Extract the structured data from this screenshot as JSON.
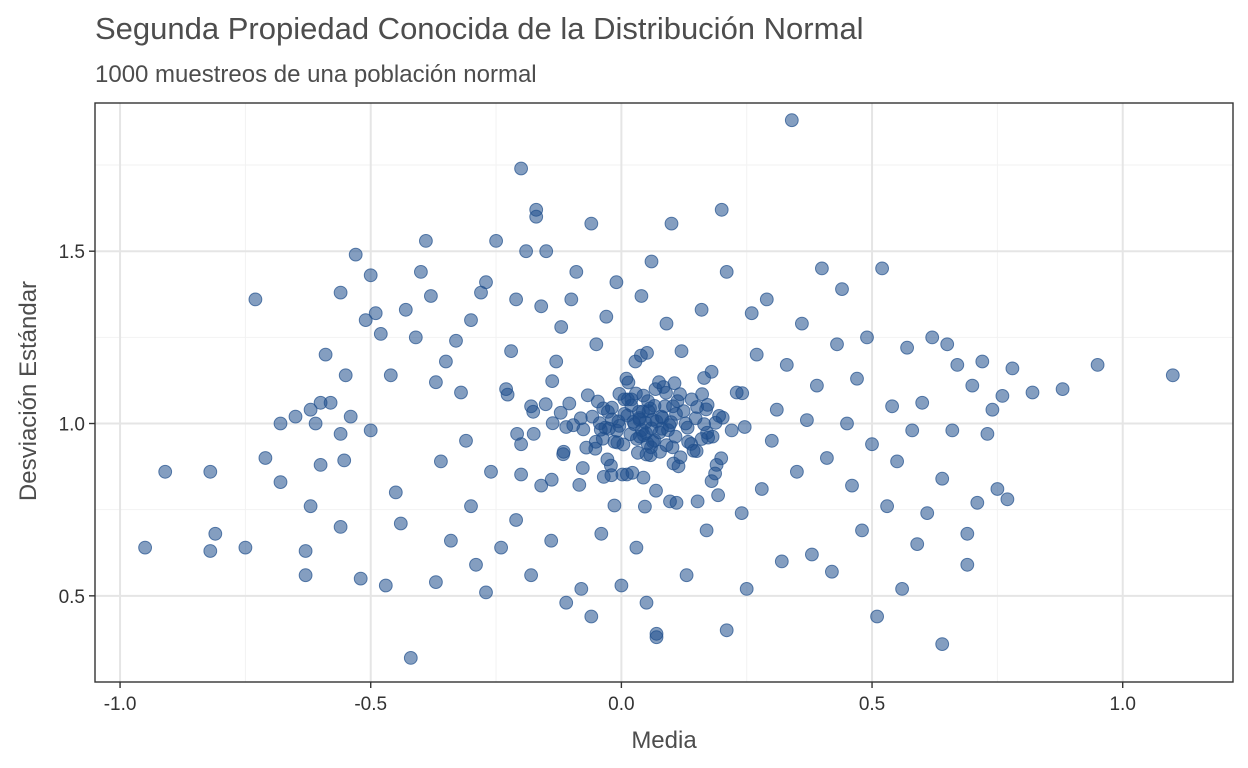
{
  "chart_data": {
    "type": "scatter",
    "title": "Segunda Propiedad Conocida de la Distribución Normal",
    "subtitle": "1000 muestreos de una población normal",
    "xlabel": "Media",
    "ylabel": "Desviación Estándar",
    "xlim": [
      -1.05,
      1.22
    ],
    "ylim": [
      0.25,
      1.93
    ],
    "x_ticks": [
      -1.0,
      -0.5,
      0.0,
      0.5,
      1.0
    ],
    "x_tick_labels": [
      "-1.0",
      "-0.5",
      "0.0",
      "0.5",
      "1.0"
    ],
    "y_ticks": [
      0.5,
      1.0,
      1.5
    ],
    "y_tick_labels": [
      "0.5",
      "1.0",
      "1.5"
    ],
    "grid": true,
    "point_color": "#1f4e8c",
    "point_opacity": 0.55,
    "series": [
      {
        "points": [
          [
            -0.95,
            0.64
          ],
          [
            -0.91,
            0.86
          ],
          [
            -0.82,
            0.86
          ],
          [
            -0.82,
            0.63
          ],
          [
            -0.81,
            0.68
          ],
          [
            -0.75,
            0.64
          ],
          [
            -0.73,
            1.36
          ],
          [
            -0.71,
            0.9
          ],
          [
            -0.68,
            0.83
          ],
          [
            -0.68,
            1.0
          ],
          [
            -0.65,
            1.02
          ],
          [
            -0.63,
            0.63
          ],
          [
            -0.63,
            0.56
          ],
          [
            -0.62,
            0.76
          ],
          [
            -0.62,
            1.04
          ],
          [
            -0.61,
            1.0
          ],
          [
            -0.6,
            1.06
          ],
          [
            -0.6,
            0.88
          ],
          [
            -0.59,
            1.2
          ],
          [
            -0.58,
            1.06
          ],
          [
            -0.56,
            0.97
          ],
          [
            -0.56,
            0.7
          ],
          [
            -0.56,
            1.38
          ],
          [
            -0.55,
            1.14
          ],
          [
            -0.54,
            1.02
          ],
          [
            -0.53,
            1.49
          ],
          [
            -0.52,
            0.55
          ],
          [
            -0.51,
            1.3
          ],
          [
            -0.5,
            1.43
          ],
          [
            -0.5,
            0.98
          ],
          [
            -0.49,
            1.32
          ],
          [
            -0.48,
            1.26
          ],
          [
            -0.47,
            0.53
          ],
          [
            -0.46,
            1.14
          ],
          [
            -0.45,
            0.8
          ],
          [
            -0.44,
            0.71
          ],
          [
            -0.43,
            1.33
          ],
          [
            -0.42,
            0.32
          ],
          [
            -0.41,
            1.25
          ],
          [
            -0.4,
            1.44
          ],
          [
            -0.39,
            1.53
          ],
          [
            -0.38,
            1.37
          ],
          [
            -0.37,
            1.12
          ],
          [
            -0.37,
            0.54
          ],
          [
            -0.36,
            0.89
          ],
          [
            -0.35,
            1.18
          ],
          [
            -0.34,
            0.66
          ],
          [
            -0.33,
            1.24
          ],
          [
            -0.32,
            1.09
          ],
          [
            -0.31,
            0.95
          ],
          [
            -0.3,
            1.3
          ],
          [
            -0.3,
            0.76
          ],
          [
            -0.29,
            0.59
          ],
          [
            -0.28,
            1.38
          ],
          [
            -0.27,
            1.41
          ],
          [
            -0.27,
            0.51
          ],
          [
            -0.26,
            0.86
          ],
          [
            -0.25,
            1.53
          ],
          [
            -0.24,
            0.64
          ],
          [
            -0.23,
            1.1
          ],
          [
            -0.22,
            1.21
          ],
          [
            -0.21,
            1.36
          ],
          [
            -0.21,
            0.72
          ],
          [
            -0.2,
            1.74
          ],
          [
            -0.2,
            0.94
          ],
          [
            -0.19,
            1.5
          ],
          [
            -0.18,
            1.05
          ],
          [
            -0.18,
            0.56
          ],
          [
            -0.17,
            1.62
          ],
          [
            -0.17,
            1.6
          ],
          [
            -0.16,
            1.34
          ],
          [
            -0.16,
            0.82
          ],
          [
            -0.15,
            1.5
          ],
          [
            -0.14,
            0.66
          ],
          [
            -0.13,
            1.18
          ],
          [
            -0.12,
            1.28
          ],
          [
            -0.11,
            0.99
          ],
          [
            -0.11,
            0.48
          ],
          [
            -0.1,
            1.36
          ],
          [
            -0.09,
            1.44
          ],
          [
            -0.08,
            0.52
          ],
          [
            -0.07,
            0.93
          ],
          [
            -0.06,
            1.58
          ],
          [
            -0.06,
            0.44
          ],
          [
            -0.05,
            1.23
          ],
          [
            -0.04,
            0.68
          ],
          [
            -0.03,
            1.31
          ],
          [
            -0.02,
            0.85
          ],
          [
            -0.01,
            1.41
          ],
          [
            0.0,
            0.53
          ],
          [
            0.01,
            1.13
          ],
          [
            0.02,
            1.07
          ],
          [
            0.03,
            0.64
          ],
          [
            0.04,
            1.37
          ],
          [
            0.05,
            0.91
          ],
          [
            0.05,
            0.48
          ],
          [
            0.06,
            1.47
          ],
          [
            0.07,
            0.39
          ],
          [
            0.07,
            0.38
          ],
          [
            0.08,
            1.02
          ],
          [
            0.09,
            1.29
          ],
          [
            0.1,
            1.58
          ],
          [
            0.11,
            0.77
          ],
          [
            0.12,
            1.21
          ],
          [
            0.13,
            0.56
          ],
          [
            0.14,
            1.07
          ],
          [
            0.15,
            0.92
          ],
          [
            0.16,
            1.33
          ],
          [
            0.17,
            0.69
          ],
          [
            0.18,
            1.15
          ],
          [
            0.19,
            0.88
          ],
          [
            0.2,
            1.62
          ],
          [
            0.21,
            0.4
          ],
          [
            0.21,
            1.44
          ],
          [
            0.22,
            0.98
          ],
          [
            0.23,
            1.09
          ],
          [
            0.24,
            0.74
          ],
          [
            0.25,
            0.52
          ],
          [
            0.26,
            1.32
          ],
          [
            0.27,
            1.2
          ],
          [
            0.28,
            0.81
          ],
          [
            0.29,
            1.36
          ],
          [
            0.3,
            0.95
          ],
          [
            0.31,
            1.04
          ],
          [
            0.32,
            0.6
          ],
          [
            0.33,
            1.17
          ],
          [
            0.34,
            1.88
          ],
          [
            0.35,
            0.86
          ],
          [
            0.36,
            1.29
          ],
          [
            0.37,
            1.01
          ],
          [
            0.38,
            0.62
          ],
          [
            0.39,
            1.11
          ],
          [
            0.4,
            1.45
          ],
          [
            0.41,
            0.9
          ],
          [
            0.42,
            0.57
          ],
          [
            0.43,
            1.23
          ],
          [
            0.44,
            1.39
          ],
          [
            0.45,
            1.0
          ],
          [
            0.46,
            0.82
          ],
          [
            0.47,
            1.13
          ],
          [
            0.48,
            0.69
          ],
          [
            0.49,
            1.25
          ],
          [
            0.5,
            0.94
          ],
          [
            0.51,
            0.44
          ],
          [
            0.52,
            1.45
          ],
          [
            0.53,
            0.76
          ],
          [
            0.54,
            1.05
          ],
          [
            0.55,
            0.89
          ],
          [
            0.56,
            0.52
          ],
          [
            0.57,
            1.22
          ],
          [
            0.58,
            0.98
          ],
          [
            0.59,
            0.65
          ],
          [
            0.6,
            1.06
          ],
          [
            0.61,
            0.74
          ],
          [
            0.62,
            1.25
          ],
          [
            0.64,
            0.36
          ],
          [
            0.64,
            0.84
          ],
          [
            0.65,
            1.23
          ],
          [
            0.66,
            0.98
          ],
          [
            0.67,
            1.17
          ],
          [
            0.69,
            0.59
          ],
          [
            0.69,
            0.68
          ],
          [
            0.7,
            1.11
          ],
          [
            0.71,
            0.77
          ],
          [
            0.72,
            1.18
          ],
          [
            0.73,
            0.97
          ],
          [
            0.74,
            1.04
          ],
          [
            0.75,
            0.81
          ],
          [
            0.76,
            1.08
          ],
          [
            0.77,
            0.78
          ],
          [
            0.78,
            1.16
          ],
          [
            0.82,
            1.09
          ],
          [
            0.88,
            1.1
          ],
          [
            0.95,
            1.17
          ],
          [
            1.1,
            1.14
          ],
          [
            -0.553,
            0.893
          ],
          [
            -0.084,
            0.822
          ],
          [
            0.104,
            0.884
          ],
          [
            -0.014,
            0.762
          ],
          [
            0.028,
            1.18
          ],
          [
            -0.104,
            1.058
          ],
          [
            0.133,
            0.947
          ],
          [
            -0.036,
            1.044
          ],
          [
            0.144,
            0.921
          ],
          [
            -0.151,
            1.056
          ],
          [
            -0.139,
            0.837
          ],
          [
            -0.208,
            0.97
          ],
          [
            0.106,
            1.117
          ],
          [
            0.002,
            0.852
          ],
          [
            0.069,
            0.805
          ],
          [
            0.084,
            1.106
          ],
          [
            0.048,
            1.003
          ],
          [
            0.246,
            0.99
          ],
          [
            0.241,
            1.088
          ],
          [
            0.169,
            1.041
          ],
          [
            -0.115,
            0.918
          ],
          [
            -0.028,
            0.896
          ],
          [
            0.152,
            0.774
          ],
          [
            0.051,
            1.205
          ],
          [
            0.011,
            0.852
          ],
          [
            0.187,
            0.855
          ],
          [
            0.039,
            1.197
          ],
          [
            -0.2,
            0.852
          ],
          [
            0.044,
            0.843
          ],
          [
            0.193,
            0.792
          ],
          [
            -0.137,
            1.001
          ],
          [
            0.006,
            1.07
          ],
          [
            0.165,
            0.998
          ],
          [
            -0.004,
            1.086
          ],
          [
            0.173,
            0.959
          ],
          [
            0.047,
            0.759
          ],
          [
            0.199,
            0.899
          ],
          [
            0.171,
            0.973
          ],
          [
            0.097,
            0.774
          ],
          [
            0.202,
            1.017
          ],
          [
            0.165,
            1.132
          ],
          [
            0.066,
            1.051
          ],
          [
            0.195,
            1.022
          ],
          [
            -0.041,
            0.982
          ],
          [
            -0.021,
            0.878
          ],
          [
            0.044,
            1.081
          ],
          [
            -0.176,
            1.034
          ],
          [
            -0.008,
            0.945
          ],
          [
            -0.138,
            1.123
          ],
          [
            0.063,
            0.947
          ],
          [
            0.099,
            1.004
          ],
          [
            0.012,
            1.023
          ],
          [
            0.026,
            0.998
          ],
          [
            -0.076,
            0.983
          ],
          [
            0.022,
            0.857
          ],
          [
            -0.047,
            1.064
          ],
          [
            0.103,
            1.05
          ],
          [
            0.128,
            1.0
          ],
          [
            0.043,
            1.035
          ],
          [
            0.16,
            0.955
          ],
          [
            -0.035,
            0.845
          ],
          [
            -0.051,
            0.947
          ],
          [
            -0.096,
            0.995
          ],
          [
            -0.227,
            1.084
          ],
          [
            0.058,
            0.908
          ],
          [
            0.151,
            1.048
          ],
          [
            -0.116,
            0.911
          ],
          [
            0.049,
            0.972
          ],
          [
            0.182,
            0.962
          ],
          [
            0.18,
            0.833
          ],
          [
            -0.077,
            0.871
          ],
          [
            0.052,
            0.942
          ],
          [
            -0.032,
            0.988
          ],
          [
            0.117,
            1.085
          ],
          [
            0.06,
            0.986
          ],
          [
            0.036,
            1.011
          ],
          [
            -0.175,
            0.97
          ],
          [
            0.075,
            1.12
          ],
          [
            -0.019,
            1.012
          ],
          [
            -0.027,
            1.034
          ],
          [
            0.02,
            1.052
          ],
          [
            0.09,
            0.937
          ],
          [
            0.037,
            0.962
          ],
          [
            0.114,
            0.876
          ],
          [
            -0.014,
            0.947
          ],
          [
            0.035,
            1.034
          ],
          [
            -0.025,
            0.985
          ],
          [
            0.07,
            1.006
          ],
          [
            -0.009,
            0.979
          ],
          [
            0.054,
            1.036
          ],
          [
            0.188,
            1.002
          ],
          [
            0.108,
            0.962
          ],
          [
            0.087,
            1.05
          ],
          [
            0.031,
            0.955
          ],
          [
            0.062,
            1.011
          ],
          [
            -0.058,
            1.02
          ],
          [
            -0.004,
            0.993
          ],
          [
            0.124,
            1.036
          ],
          [
            0.076,
            0.974
          ],
          [
            0.013,
            1.07
          ],
          [
            0.096,
            0.995
          ],
          [
            0.041,
            0.981
          ],
          [
            0.057,
            1.044
          ],
          [
            -0.043,
            1.001
          ],
          [
            0.082,
            1.017
          ],
          [
            0.018,
            0.969
          ],
          [
            0.132,
            0.988
          ],
          [
            0.006,
            1.028
          ],
          [
            0.066,
            0.951
          ],
          [
            0.036,
            1.016
          ],
          [
            0.093,
            0.981
          ],
          [
            -0.067,
            1.082
          ],
          [
            0.148,
            1.015
          ],
          [
            0.059,
            0.931
          ],
          [
            -0.121,
            1.031
          ],
          [
            0.004,
            0.939
          ],
          [
            0.112,
            1.065
          ],
          [
            0.029,
            1.087
          ],
          [
            0.077,
            0.918
          ],
          [
            -0.019,
            1.046
          ],
          [
            0.139,
            0.941
          ],
          [
            0.068,
            1.1
          ],
          [
            -0.037,
            0.956
          ],
          [
            0.172,
            1.054
          ],
          [
            0.014,
            1.119
          ],
          [
            0.118,
            0.902
          ],
          [
            -0.081,
            1.015
          ],
          [
            0.033,
            0.915
          ],
          [
            0.053,
            1.065
          ],
          [
            0.161,
            1.085
          ],
          [
            -0.006,
            1.006
          ],
          [
            0.089,
            1.089
          ],
          [
            0.102,
            0.931
          ],
          [
            -0.052,
            0.927
          ],
          [
            0.024,
            1.005
          ],
          [
            0.081,
            0.985
          ],
          [
            0.045,
            0.966
          ],
          [
            0.109,
            1.028
          ]
        ]
      }
    ]
  }
}
